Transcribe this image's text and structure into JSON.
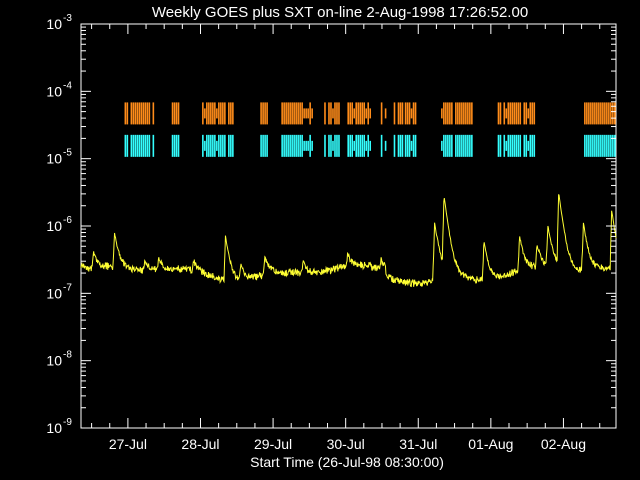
{
  "chart_data": {
    "type": "line",
    "title": "Weekly GOES plus SXT on-line  2-Aug-1998 17:26:52.00",
    "xlabel": "Start Time (26-Jul-98 08:30:00)",
    "ylabel": "",
    "yscale": "log",
    "ylim": [
      1e-09,
      0.001
    ],
    "xlim_days": [
      0,
      7.37
    ],
    "xtick_labels": [
      "27-Jul",
      "28-Jul",
      "29-Jul",
      "30-Jul",
      "31-Jul",
      "01-Aug",
      "02-Aug"
    ],
    "xtick_days": [
      0.646,
      1.646,
      2.646,
      3.646,
      4.646,
      5.646,
      6.646
    ],
    "ytick_labels": [
      {
        "base": "10",
        "exp": "-9"
      },
      {
        "base": "10",
        "exp": "-8"
      },
      {
        "base": "10",
        "exp": "-7"
      },
      {
        "base": "10",
        "exp": "-6"
      },
      {
        "base": "10",
        "exp": "-5"
      },
      {
        "base": "10",
        "exp": "-4"
      },
      {
        "base": "10",
        "exp": "-3"
      }
    ],
    "ytick_values": [
      1e-09,
      1e-08,
      1e-07,
      1e-06,
      1e-05,
      0.0001,
      0.001
    ],
    "flux_background": 2e-07,
    "flares": [
      {
        "t": 0.01,
        "peak": 2.6e-07
      },
      {
        "t": 0.17,
        "peak": 3.8e-07
      },
      {
        "t": 0.46,
        "peak": 7.5e-07
      },
      {
        "t": 0.88,
        "peak": 3e-07
      },
      {
        "t": 1.07,
        "peak": 3.2e-07
      },
      {
        "t": 1.55,
        "peak": 2.9e-07
      },
      {
        "t": 1.99,
        "peak": 7.7e-07
      },
      {
        "t": 2.2,
        "peak": 3.1e-07
      },
      {
        "t": 2.53,
        "peak": 3.8e-07
      },
      {
        "t": 3.06,
        "peak": 3e-07
      },
      {
        "t": 3.67,
        "peak": 3.4e-07
      },
      {
        "t": 4.13,
        "peak": 3e-07
      },
      {
        "t": 4.87,
        "peak": 1.2e-06
      },
      {
        "t": 5.0,
        "peak": 2.8e-06
      },
      {
        "t": 5.55,
        "peak": 6.5e-07
      },
      {
        "t": 6.04,
        "peak": 7e-07
      },
      {
        "t": 6.28,
        "peak": 5e-07
      },
      {
        "t": 6.43,
        "peak": 1e-06
      },
      {
        "t": 6.58,
        "peak": 3.1e-06
      },
      {
        "t": 6.92,
        "peak": 1.1e-06
      },
      {
        "t": 7.31,
        "peak": 1.7e-06
      }
    ],
    "sxt_full_frame": {
      "color": "#ff8c1a",
      "flux_level": 4.7e-05,
      "intervals_days": [
        [
          0.6,
          1.0
        ],
        [
          1.25,
          1.34
        ],
        [
          1.64,
          2.1
        ],
        [
          2.47,
          2.56
        ],
        [
          2.76,
          3.2
        ],
        [
          3.35,
          3.55
        ],
        [
          3.67,
          3.98
        ],
        [
          4.13,
          4.2
        ],
        [
          4.28,
          4.44
        ],
        [
          4.46,
          4.62
        ],
        [
          4.96,
          5.4
        ],
        [
          5.74,
          5.77
        ],
        [
          5.82,
          6.24
        ],
        [
          6.93,
          7.37
        ]
      ]
    },
    "sxt_partial_frame": {
      "color": "#33ffff",
      "flux_level": 1.55e-05,
      "intervals_days": [
        [
          0.6,
          1.0
        ],
        [
          1.25,
          1.34
        ],
        [
          1.64,
          2.1
        ],
        [
          2.47,
          2.56
        ],
        [
          2.76,
          3.2
        ],
        [
          3.35,
          3.55
        ],
        [
          3.67,
          3.98
        ],
        [
          4.13,
          4.2
        ],
        [
          4.28,
          4.44
        ],
        [
          4.46,
          4.62
        ],
        [
          4.96,
          5.4
        ],
        [
          5.74,
          5.77
        ],
        [
          5.82,
          6.24
        ],
        [
          6.93,
          7.37
        ]
      ]
    },
    "goes_color": "#ffff33",
    "axis_color": "#ffffff"
  }
}
